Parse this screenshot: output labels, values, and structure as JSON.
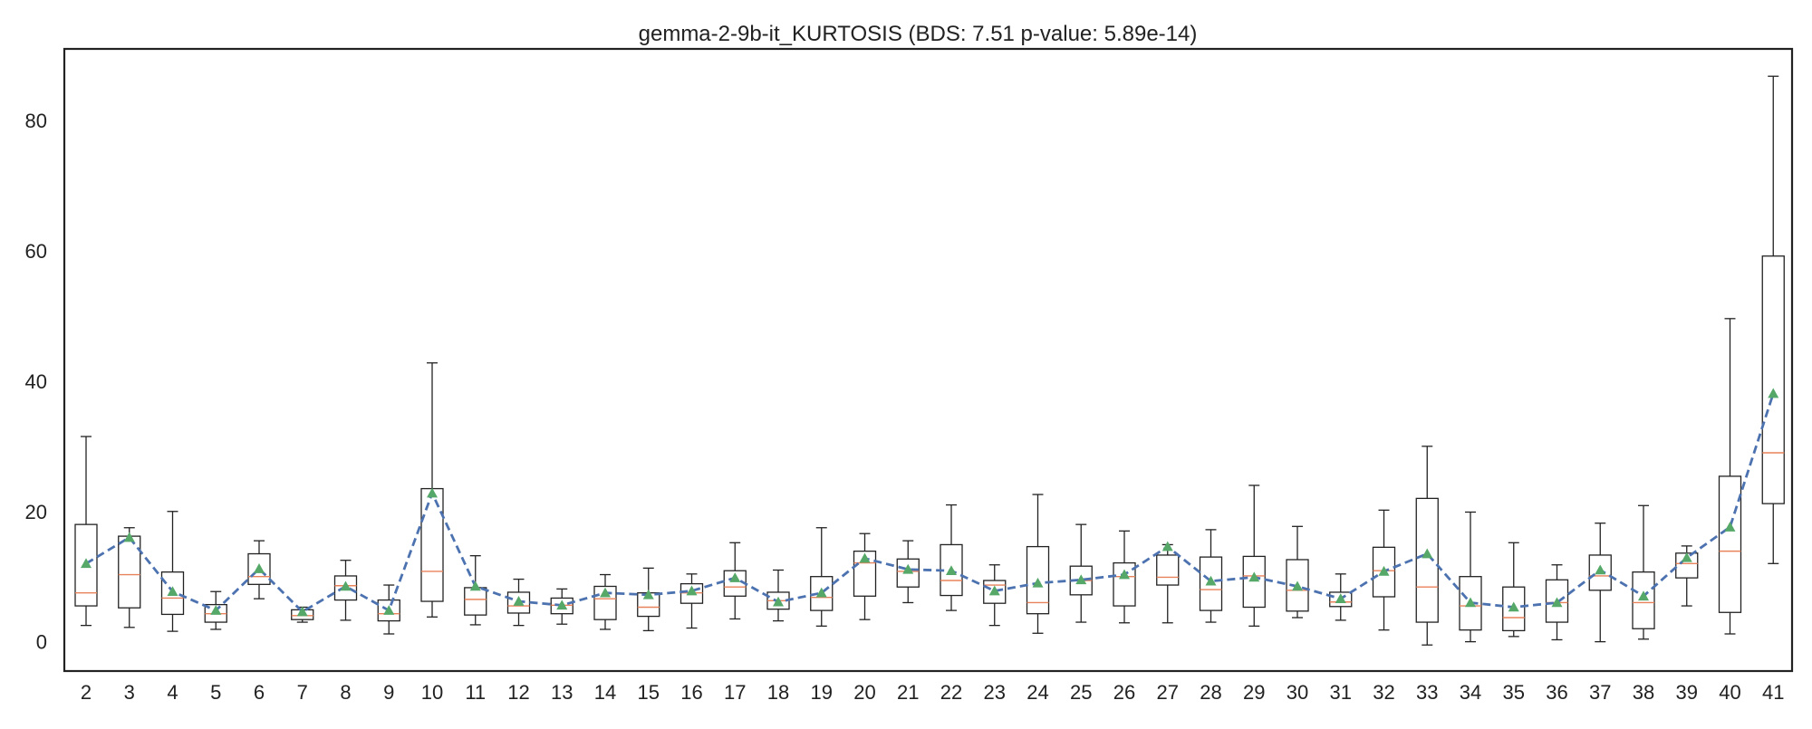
{
  "chart_data": {
    "type": "box",
    "title": "gemma-2-9b-it_KURTOSIS (BDS: 7.51 p-value: 5.89e-14)",
    "xlabel": "",
    "ylabel": "",
    "ylim": [
      -4.5,
      91
    ],
    "yticks": [
      0,
      20,
      40,
      60,
      80
    ],
    "grid": false,
    "legend": "none",
    "colors": {
      "box": "#222222",
      "median": "#e8825a",
      "mean_marker": "#55a868",
      "mean_line": "#4c72b0"
    },
    "categories": [
      "2",
      "3",
      "4",
      "5",
      "6",
      "7",
      "8",
      "9",
      "10",
      "11",
      "12",
      "13",
      "14",
      "15",
      "16",
      "17",
      "18",
      "19",
      "20",
      "21",
      "22",
      "23",
      "24",
      "25",
      "26",
      "27",
      "28",
      "29",
      "30",
      "31",
      "32",
      "33",
      "34",
      "35",
      "36",
      "37",
      "38",
      "39",
      "40",
      "41"
    ],
    "boxes": [
      {
        "whislo": 2.5,
        "q1": 5.5,
        "med": 7.5,
        "q3": 18.0,
        "whishi": 31.5,
        "mean": 12.0
      },
      {
        "whislo": 2.2,
        "q1": 5.2,
        "med": 10.3,
        "q3": 16.2,
        "whishi": 17.5,
        "mean": 16.0
      },
      {
        "whislo": 1.6,
        "q1": 4.2,
        "med": 6.7,
        "q3": 10.7,
        "whishi": 20.0,
        "mean": 7.7
      },
      {
        "whislo": 1.9,
        "q1": 3.0,
        "med": 4.3,
        "q3": 5.7,
        "whishi": 7.7,
        "mean": 4.8
      },
      {
        "whislo": 6.6,
        "q1": 8.8,
        "med": 10.0,
        "q3": 13.5,
        "whishi": 15.5,
        "mean": 11.2
      },
      {
        "whislo": 3.0,
        "q1": 3.4,
        "med": 4.0,
        "q3": 4.9,
        "whishi": 5.3,
        "mean": 4.6
      },
      {
        "whislo": 3.3,
        "q1": 6.4,
        "med": 8.6,
        "q3": 10.1,
        "whishi": 12.5,
        "mean": 8.5
      },
      {
        "whislo": 1.2,
        "q1": 3.2,
        "med": 4.3,
        "q3": 6.4,
        "whishi": 8.7,
        "mean": 4.8
      },
      {
        "whislo": 3.8,
        "q1": 6.2,
        "med": 10.8,
        "q3": 23.5,
        "whishi": 42.8,
        "mean": 22.8
      },
      {
        "whislo": 2.6,
        "q1": 4.1,
        "med": 6.5,
        "q3": 8.3,
        "whishi": 13.2,
        "mean": 8.5
      },
      {
        "whislo": 2.5,
        "q1": 4.4,
        "med": 5.5,
        "q3": 7.6,
        "whishi": 9.6,
        "mean": 6.2
      },
      {
        "whislo": 2.7,
        "q1": 4.3,
        "med": 5.6,
        "q3": 6.7,
        "whishi": 8.1,
        "mean": 5.6
      },
      {
        "whislo": 1.9,
        "q1": 3.4,
        "med": 6.6,
        "q3": 8.5,
        "whishi": 10.3,
        "mean": 7.5
      },
      {
        "whislo": 1.7,
        "q1": 3.9,
        "med": 5.3,
        "q3": 7.5,
        "whishi": 11.3,
        "mean": 7.2
      },
      {
        "whislo": 2.1,
        "q1": 5.9,
        "med": 7.5,
        "q3": 8.9,
        "whishi": 10.4,
        "mean": 7.8
      },
      {
        "whislo": 3.5,
        "q1": 7.0,
        "med": 8.4,
        "q3": 10.9,
        "whishi": 15.2,
        "mean": 9.8
      },
      {
        "whislo": 3.2,
        "q1": 5.0,
        "med": 6.3,
        "q3": 7.6,
        "whishi": 11.0,
        "mean": 6.1
      },
      {
        "whislo": 2.4,
        "q1": 4.8,
        "med": 6.8,
        "q3": 10.0,
        "whishi": 17.5,
        "mean": 7.5
      },
      {
        "whislo": 3.4,
        "q1": 7.0,
        "med": 12.1,
        "q3": 13.9,
        "whishi": 16.6,
        "mean": 12.8
      },
      {
        "whislo": 6.0,
        "q1": 8.4,
        "med": 10.8,
        "q3": 12.7,
        "whishi": 15.5,
        "mean": 11.1
      },
      {
        "whislo": 4.8,
        "q1": 7.1,
        "med": 9.4,
        "q3": 14.9,
        "whishi": 21.0,
        "mean": 10.9
      },
      {
        "whislo": 2.5,
        "q1": 5.9,
        "med": 8.7,
        "q3": 9.4,
        "whishi": 11.8,
        "mean": 7.8
      },
      {
        "whislo": 1.3,
        "q1": 4.3,
        "med": 6.0,
        "q3": 14.6,
        "whishi": 22.6,
        "mean": 9.0
      },
      {
        "whislo": 3.0,
        "q1": 7.2,
        "med": 9.4,
        "q3": 11.6,
        "whishi": 18.0,
        "mean": 9.5
      },
      {
        "whislo": 2.9,
        "q1": 5.5,
        "med": 10.0,
        "q3": 12.1,
        "whishi": 17.0,
        "mean": 10.3
      },
      {
        "whislo": 2.9,
        "q1": 8.7,
        "med": 9.9,
        "q3": 13.3,
        "whishi": 14.9,
        "mean": 14.6
      },
      {
        "whislo": 3.0,
        "q1": 4.8,
        "med": 8.0,
        "q3": 13.0,
        "whishi": 17.2,
        "mean": 9.3
      },
      {
        "whislo": 2.4,
        "q1": 5.3,
        "med": 10.1,
        "q3": 13.1,
        "whishi": 24.0,
        "mean": 9.9
      },
      {
        "whislo": 3.7,
        "q1": 4.7,
        "med": 7.9,
        "q3": 12.6,
        "whishi": 17.7,
        "mean": 8.5
      },
      {
        "whislo": 3.3,
        "q1": 5.4,
        "med": 6.1,
        "q3": 7.6,
        "whishi": 10.4,
        "mean": 6.6
      },
      {
        "whislo": 1.8,
        "q1": 6.9,
        "med": 10.9,
        "q3": 14.5,
        "whishi": 20.2,
        "mean": 10.8
      },
      {
        "whislo": -0.5,
        "q1": 3.0,
        "med": 8.4,
        "q3": 22.0,
        "whishi": 30.0,
        "mean": 13.5
      },
      {
        "whislo": 0.0,
        "q1": 1.8,
        "med": 5.5,
        "q3": 10.0,
        "whishi": 19.9,
        "mean": 6.0
      },
      {
        "whislo": 0.8,
        "q1": 1.7,
        "med": 3.7,
        "q3": 8.4,
        "whishi": 15.2,
        "mean": 5.3
      },
      {
        "whislo": 0.3,
        "q1": 3.0,
        "med": 6.0,
        "q3": 9.5,
        "whishi": 11.8,
        "mean": 6.0
      },
      {
        "whislo": 0.0,
        "q1": 7.9,
        "med": 10.1,
        "q3": 13.3,
        "whishi": 18.2,
        "mean": 11.0
      },
      {
        "whislo": 0.4,
        "q1": 2.0,
        "med": 6.0,
        "q3": 10.7,
        "whishi": 20.9,
        "mean": 7.0
      },
      {
        "whislo": 5.5,
        "q1": 9.8,
        "med": 12.0,
        "q3": 13.6,
        "whishi": 14.7,
        "mean": 12.9
      },
      {
        "whislo": 1.2,
        "q1": 4.5,
        "med": 13.9,
        "q3": 25.4,
        "whishi": 49.6,
        "mean": 17.6
      },
      {
        "whislo": 12.0,
        "q1": 21.2,
        "med": 29.0,
        "q3": 59.2,
        "whishi": 86.8,
        "mean": 38.1
      }
    ]
  }
}
